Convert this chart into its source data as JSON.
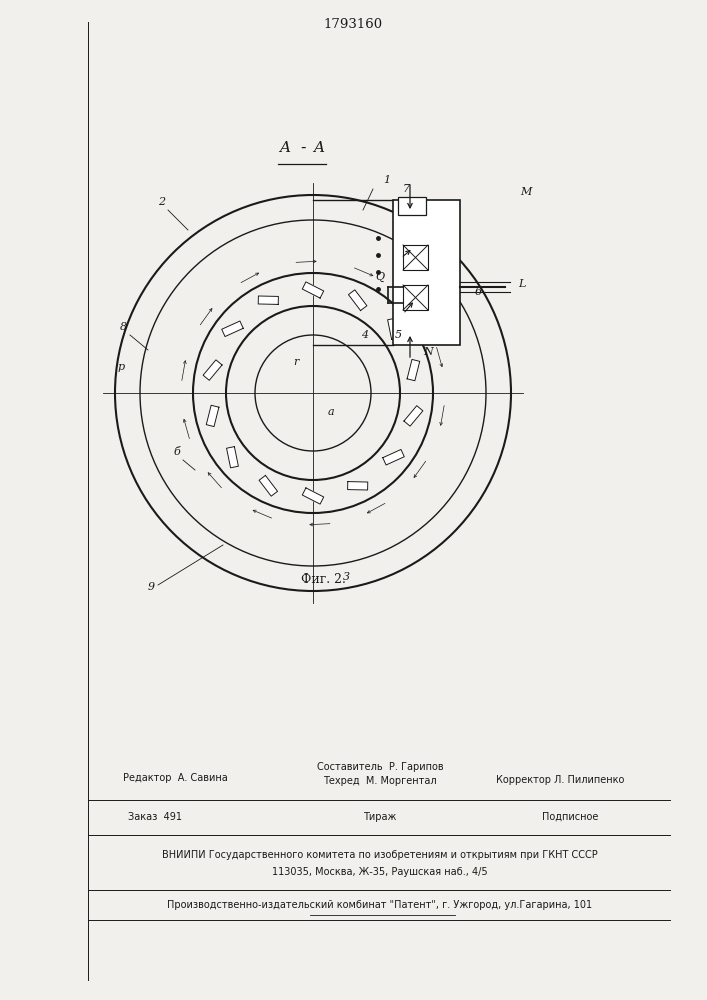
{
  "patent_number": "1793160",
  "fig_label": "Фиг. 2.",
  "bg_color": "#f2f0ec",
  "line_color": "#1a1a1a",
  "footer_left": "Редактор  А. Савина",
  "footer_c1": "Составитель  Р. Гарипов",
  "footer_c2": "Техред  М. Моргентал",
  "footer_right": "Корректор Л. Пилипенко",
  "footer_zak": "Заказ  491",
  "footer_tirazh": "Тираж",
  "footer_podp": "Подписное",
  "footer_vniipи": "ВНИИПИ Государственного комитета по изобретениям и открытиям при ГКНТ СССР",
  "footer_addr": "113035, Москва, Ж-35, Раушская наб., 4/5",
  "footer_patent": "Производственно-издательский комбинат \"Патент\", г. Ужгород, ул.Гагарина, 101"
}
